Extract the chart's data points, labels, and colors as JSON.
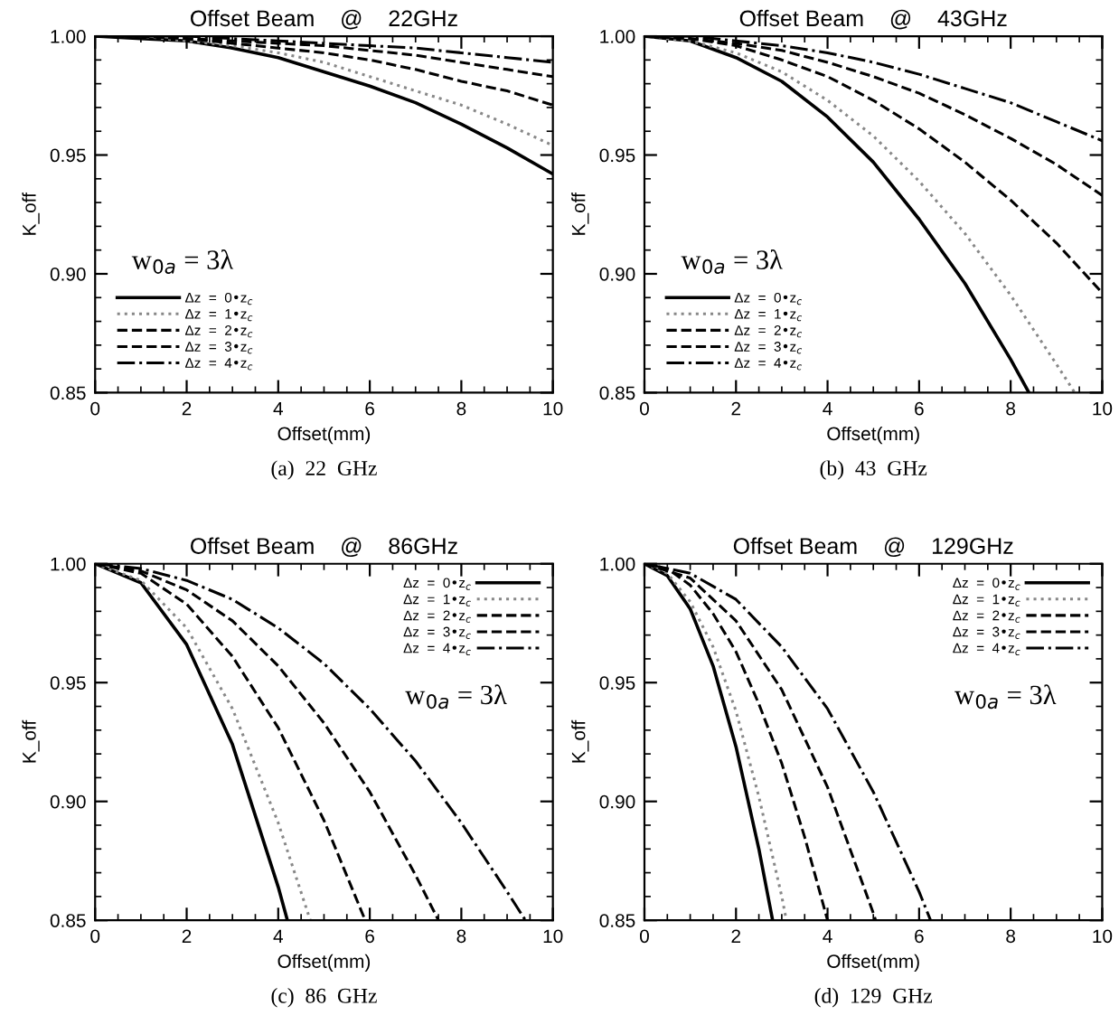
{
  "chart_data": [
    {
      "type": "line",
      "title": "Offset Beam    @    22GHz",
      "xlabel": "Offset(mm)",
      "ylabel": "K_off",
      "xlim": [
        0,
        10
      ],
      "ylim": [
        0.85,
        1.0
      ],
      "xticks": [
        0,
        2,
        4,
        6,
        8,
        10
      ],
      "yticks": [
        {
          "value": 0.85,
          "label": "0.85"
        },
        {
          "value": 0.9,
          "label": "0.90"
        },
        {
          "value": 0.95,
          "label": "0.95"
        },
        {
          "value": 1.0,
          "label": "1.00"
        }
      ],
      "legend": "bottom left",
      "grid": false,
      "annotations": [
        "w$_{0a}$ = 3λ",
        "(a)  22  GHz"
      ],
      "series": [
        {
          "name": "Δz  =  0•z$_{c}$",
          "color": "#000000",
          "line_style": "solid",
          "x": [
            0,
            1,
            2,
            3,
            4,
            5,
            6,
            7,
            8,
            9,
            10
          ],
          "values": [
            1.0,
            0.999,
            0.998,
            0.995,
            0.991,
            0.985,
            0.979,
            0.972,
            0.963,
            0.953,
            0.942
          ]
        },
        {
          "name": "Δz  =  1•z$_{c}$",
          "color": "#888888",
          "line_style": "dotted",
          "x": [
            0,
            1,
            2,
            3,
            4,
            5,
            6,
            7,
            8,
            9,
            10
          ],
          "values": [
            1.0,
            1.0,
            0.998,
            0.996,
            0.993,
            0.989,
            0.983,
            0.977,
            0.971,
            0.963,
            0.954
          ]
        },
        {
          "name": "Δz  =  2•z$_{c}$",
          "color": "#000000",
          "line_style": "dashed",
          "x": [
            0,
            1,
            2,
            3,
            4,
            5,
            6,
            7,
            8,
            9,
            10
          ],
          "values": [
            1.0,
            1.0,
            0.999,
            0.997,
            0.995,
            0.993,
            0.99,
            0.986,
            0.981,
            0.977,
            0.971
          ]
        },
        {
          "name": "Δz  =  3•z$_{c}$",
          "color": "#000000",
          "line_style": "dashed",
          "x": [
            0,
            1,
            2,
            3,
            4,
            5,
            6,
            7,
            8,
            9,
            10
          ],
          "values": [
            1.0,
            1.0,
            0.999,
            0.998,
            0.997,
            0.996,
            0.994,
            0.992,
            0.989,
            0.986,
            0.983
          ]
        },
        {
          "name": "Δz  =  4•z$_{c}$",
          "color": "#000000",
          "line_style": "dashdot",
          "x": [
            0,
            1,
            2,
            3,
            4,
            5,
            6,
            7,
            8,
            9,
            10
          ],
          "values": [
            1.0,
            1.0,
            1.0,
            0.999,
            0.998,
            0.997,
            0.996,
            0.995,
            0.993,
            0.991,
            0.989
          ]
        }
      ]
    },
    {
      "type": "line",
      "title": "Offset Beam    @    43GHz",
      "xlabel": "Offset(mm)",
      "ylabel": "K_off",
      "xlim": [
        0,
        10
      ],
      "ylim": [
        0.85,
        1.0
      ],
      "xticks": [
        0,
        2,
        4,
        6,
        8,
        10
      ],
      "yticks": [
        {
          "value": 0.85,
          "label": "0.85"
        },
        {
          "value": 0.9,
          "label": "0.90"
        },
        {
          "value": 0.95,
          "label": "0.95"
        },
        {
          "value": 1.0,
          "label": "1.00"
        }
      ],
      "legend": "bottom left",
      "grid": false,
      "annotations": [
        "w$_{0a}$ = 3λ",
        "(b)  43  GHz"
      ],
      "series": [
        {
          "name": "Δz  =  0•z$_{c}$",
          "color": "#000000",
          "line_style": "solid",
          "x": [
            0,
            1,
            2,
            3,
            4,
            5,
            6,
            7,
            8,
            8.4
          ],
          "values": [
            1.0,
            0.998,
            0.991,
            0.981,
            0.966,
            0.947,
            0.923,
            0.896,
            0.864,
            0.85
          ]
        },
        {
          "name": "Δz  =  1•z$_{c}$",
          "color": "#888888",
          "line_style": "dotted",
          "x": [
            0,
            1,
            2,
            3,
            4,
            5,
            6,
            7,
            8,
            9,
            9.4
          ],
          "values": [
            1.0,
            0.998,
            0.993,
            0.985,
            0.973,
            0.958,
            0.939,
            0.917,
            0.891,
            0.862,
            0.85
          ]
        },
        {
          "name": "Δz  =  2•z$_{c}$",
          "color": "#000000",
          "line_style": "dashed",
          "x": [
            0,
            1,
            2,
            3,
            4,
            5,
            6,
            7,
            8,
            9,
            10
          ],
          "values": [
            1.0,
            0.999,
            0.996,
            0.99,
            0.983,
            0.973,
            0.961,
            0.947,
            0.931,
            0.913,
            0.892
          ]
        },
        {
          "name": "Δz  =  3•z$_{c}$",
          "color": "#000000",
          "line_style": "dashed",
          "x": [
            0,
            1,
            2,
            3,
            4,
            5,
            6,
            7,
            8,
            9,
            10
          ],
          "values": [
            1.0,
            0.999,
            0.997,
            0.994,
            0.989,
            0.983,
            0.976,
            0.967,
            0.957,
            0.946,
            0.933
          ]
        },
        {
          "name": "Δz  =  4•z$_{c}$",
          "color": "#000000",
          "line_style": "dashdot",
          "x": [
            0,
            1,
            2,
            3,
            4,
            5,
            6,
            7,
            8,
            9,
            10
          ],
          "values": [
            1.0,
            1.0,
            0.998,
            0.996,
            0.993,
            0.989,
            0.984,
            0.978,
            0.972,
            0.964,
            0.956
          ]
        }
      ]
    },
    {
      "type": "line",
      "title": "Offset Beam    @    86GHz",
      "xlabel": "Offset(mm)",
      "ylabel": "K_off",
      "xlim": [
        0,
        10
      ],
      "ylim": [
        0.85,
        1.0
      ],
      "xticks": [
        0,
        2,
        4,
        6,
        8,
        10
      ],
      "yticks": [
        {
          "value": 0.85,
          "label": "0.85"
        },
        {
          "value": 0.9,
          "label": "0.90"
        },
        {
          "value": 0.95,
          "label": "0.95"
        },
        {
          "value": 1.0,
          "label": "1.00"
        }
      ],
      "legend": "top right",
      "grid": false,
      "annotations": [
        "w$_{0a}$ = 3λ",
        "(c)  86  GHz"
      ],
      "series": [
        {
          "name": "Δz  =  0•z$_{c}$",
          "color": "#000000",
          "line_style": "solid",
          "x": [
            0,
            1,
            2,
            3,
            4,
            4.2
          ],
          "values": [
            1.0,
            0.992,
            0.966,
            0.924,
            0.864,
            0.85
          ]
        },
        {
          "name": "Δz  =  1•z$_{c}$",
          "color": "#888888",
          "line_style": "dotted",
          "x": [
            0,
            1,
            2,
            3,
            4,
            4.7
          ],
          "values": [
            1.0,
            0.993,
            0.973,
            0.939,
            0.891,
            0.85
          ]
        },
        {
          "name": "Δz  =  2•z$_{c}$",
          "color": "#000000",
          "line_style": "dashed",
          "x": [
            0,
            1,
            2,
            3,
            4,
            5,
            5.9
          ],
          "values": [
            1.0,
            0.996,
            0.983,
            0.961,
            0.931,
            0.892,
            0.85
          ]
        },
        {
          "name": "Δz  =  3•z$_{c}$",
          "color": "#000000",
          "line_style": "dashed",
          "x": [
            0,
            1,
            2,
            3,
            4,
            5,
            6,
            7,
            7.5
          ],
          "values": [
            1.0,
            0.997,
            0.989,
            0.976,
            0.957,
            0.933,
            0.904,
            0.869,
            0.85
          ]
        },
        {
          "name": "Δz  =  4•z$_{c}$",
          "color": "#000000",
          "line_style": "dashdot",
          "x": [
            0,
            1,
            2,
            3,
            4,
            5,
            6,
            7,
            8,
            9,
            9.4
          ],
          "values": [
            1.0,
            0.998,
            0.993,
            0.985,
            0.973,
            0.958,
            0.939,
            0.917,
            0.891,
            0.862,
            0.85
          ]
        }
      ]
    },
    {
      "type": "line",
      "title": "Offset Beam    @    129GHz",
      "xlabel": "Offset(mm)",
      "ylabel": "K_off",
      "xlim": [
        0,
        10
      ],
      "ylim": [
        0.85,
        1.0
      ],
      "xticks": [
        0,
        2,
        4,
        6,
        8,
        10
      ],
      "yticks": [
        {
          "value": 0.85,
          "label": "0.85"
        },
        {
          "value": 0.9,
          "label": "0.90"
        },
        {
          "value": 0.95,
          "label": "0.95"
        },
        {
          "value": 1.0,
          "label": "1.00"
        }
      ],
      "legend": "top right",
      "grid": false,
      "annotations": [
        "w$_{0a}$ = 3λ",
        "(d)  129  GHz"
      ],
      "series": [
        {
          "name": "Δz  =  0•z$_{c}$",
          "color": "#000000",
          "line_style": "solid",
          "x": [
            0,
            0.5,
            1,
            1.5,
            2,
            2.5,
            2.8
          ],
          "values": [
            1.0,
            0.995,
            0.981,
            0.957,
            0.923,
            0.88,
            0.85
          ]
        },
        {
          "name": "Δz  =  1•z$_{c}$",
          "color": "#888888",
          "line_style": "dotted",
          "x": [
            0,
            0.5,
            1,
            1.5,
            2,
            2.5,
            3,
            3.1
          ],
          "values": [
            1.0,
            0.996,
            0.984,
            0.965,
            0.938,
            0.902,
            0.86,
            0.85
          ]
        },
        {
          "name": "Δz  =  2•z$_{c}$",
          "color": "#000000",
          "line_style": "dashed",
          "x": [
            0,
            0.5,
            1,
            1.5,
            2,
            2.5,
            3,
            3.5,
            4
          ],
          "values": [
            1.0,
            0.998,
            0.991,
            0.979,
            0.963,
            0.941,
            0.916,
            0.885,
            0.85
          ]
        },
        {
          "name": "Δz  =  3•z$_{c}$",
          "color": "#000000",
          "line_style": "dashed",
          "x": [
            0,
            1,
            2,
            3,
            4,
            5,
            5.05
          ],
          "values": [
            1.0,
            0.994,
            0.976,
            0.947,
            0.906,
            0.853,
            0.85
          ]
        },
        {
          "name": "Δz  =  4•z$_{c}$",
          "color": "#000000",
          "line_style": "dashdot",
          "x": [
            0,
            1,
            2,
            3,
            4,
            5,
            6,
            6.25
          ],
          "values": [
            1.0,
            0.996,
            0.985,
            0.965,
            0.939,
            0.904,
            0.862,
            0.85
          ]
        }
      ]
    }
  ]
}
